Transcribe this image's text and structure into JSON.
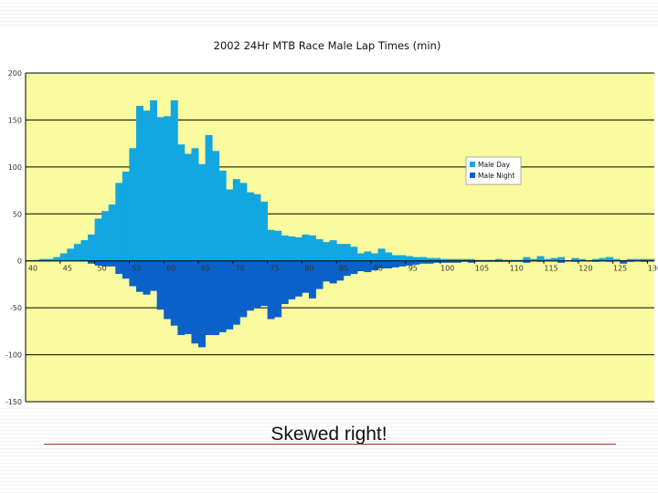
{
  "chart_data": {
    "type": "bar",
    "title": "2002 24Hr MTB Race     Male Lap Times (min)",
    "legend": {
      "position": "right",
      "entries": [
        "Male Day",
        "Male Night"
      ]
    },
    "ylim": [
      -150,
      200
    ],
    "yticks": [
      -150,
      -100,
      -50,
      0,
      50,
      100,
      150,
      200
    ],
    "ytick_labels": [
      "-150",
      "-100",
      "-50",
      "0",
      "50",
      "100",
      "150",
      "200"
    ],
    "xtick_labels": [
      "40",
      "45",
      "50",
      "55",
      "60",
      "65",
      "70",
      "75",
      "80",
      "85",
      "90",
      "95",
      "100",
      "105",
      "110",
      "115",
      "120",
      "125",
      "130"
    ],
    "xlim": [
      40,
      131
    ],
    "grid": "horizontal",
    "colors": {
      "plot_bg": "#fafa9e",
      "Male Day": "#12a7e0",
      "Male Night": "#0a62c9",
      "grid": "#000000"
    },
    "x": [
      40,
      41,
      42,
      43,
      44,
      45,
      46,
      47,
      48,
      49,
      50,
      51,
      52,
      53,
      54,
      55,
      56,
      57,
      58,
      59,
      60,
      61,
      62,
      63,
      64,
      65,
      66,
      67,
      68,
      69,
      70,
      71,
      72,
      73,
      74,
      75,
      76,
      77,
      78,
      79,
      80,
      81,
      82,
      83,
      84,
      85,
      86,
      87,
      88,
      89,
      90,
      91,
      92,
      93,
      94,
      95,
      96,
      97,
      98,
      99,
      100,
      101,
      102,
      103,
      104,
      105,
      106,
      107,
      108,
      109,
      110,
      111,
      112,
      113,
      114,
      115,
      116,
      117,
      118,
      119,
      120,
      121,
      122,
      123,
      124,
      125,
      126,
      127,
      128,
      129,
      130
    ],
    "series": [
      {
        "name": "Male Day",
        "values": [
          0,
          1,
          2,
          2,
          4,
          8,
          13,
          18,
          22,
          28,
          45,
          53,
          60,
          83,
          95,
          120,
          165,
          160,
          171,
          153,
          154,
          171,
          124,
          114,
          120,
          103,
          134,
          117,
          96,
          76,
          87,
          83,
          73,
          71,
          63,
          33,
          32,
          27,
          26,
          25,
          28,
          27,
          23,
          20,
          22,
          18,
          18,
          15,
          8,
          10,
          8,
          13,
          9,
          6,
          6,
          5,
          4,
          4,
          3,
          3,
          2,
          2,
          2,
          2,
          2,
          1,
          1,
          1,
          2,
          1,
          1,
          1,
          4,
          2,
          5,
          2,
          3,
          4,
          0,
          3,
          2,
          0,
          2,
          3,
          4,
          2,
          0,
          2,
          2,
          2,
          2
        ]
      },
      {
        "name": "Male Night",
        "values": [
          0,
          0,
          0,
          0,
          0,
          0,
          0,
          0,
          0,
          -3,
          -5,
          -6,
          -6,
          -14,
          -19,
          -27,
          -33,
          -36,
          -32,
          -52,
          -62,
          -69,
          -79,
          -78,
          -88,
          -92,
          -79,
          -79,
          -76,
          -73,
          -68,
          -60,
          -53,
          -50,
          -48,
          -62,
          -60,
          -46,
          -41,
          -38,
          -34,
          -40,
          -30,
          -22,
          -24,
          -21,
          -16,
          -14,
          -11,
          -12,
          -10,
          -8,
          -8,
          -7,
          -6,
          -5,
          -4,
          -3,
          -3,
          -2,
          -2,
          -2,
          -2,
          -1,
          -2,
          -1,
          -1,
          -1,
          -1,
          -1,
          -1,
          -1,
          -2,
          0,
          -1,
          0,
          0,
          -2,
          0,
          -1,
          0,
          0,
          -1,
          0,
          -1,
          0,
          -3,
          -1,
          0,
          -1,
          0
        ]
      }
    ]
  },
  "caption": "Skewed right!"
}
